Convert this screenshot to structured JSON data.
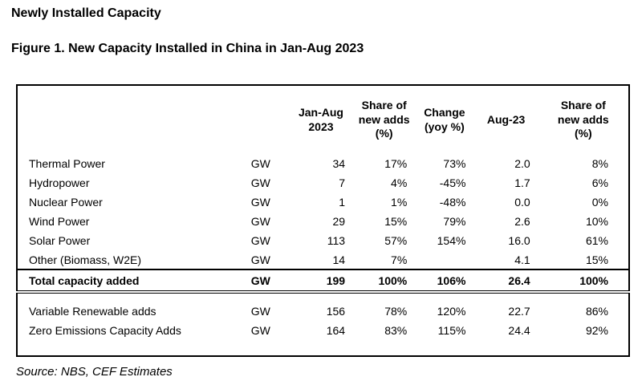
{
  "page": {
    "title": "Newly Installed Capacity",
    "figure_title": "Figure 1. New Capacity Installed in China in Jan-Aug 2023",
    "source_note": "Source: NBS, CEF Estimates"
  },
  "table": {
    "headers": {
      "label": "",
      "unit": "",
      "jan_aug": "Jan-Aug\n2023",
      "share_new_adds_1": "Share of\nnew adds\n(%)",
      "change_yoy": "Change\n(yoy %)",
      "aug_23": "Aug-23",
      "share_new_adds_2": "Share of\nnew adds\n(%)"
    },
    "rows": [
      {
        "label": "Thermal Power",
        "unit": "GW",
        "values": [
          "34",
          "17%",
          "73%",
          "2.0",
          "8%"
        ]
      },
      {
        "label": "Hydropower",
        "unit": "GW",
        "values": [
          "7",
          "4%",
          "-45%",
          "1.7",
          "6%"
        ]
      },
      {
        "label": "Nuclear Power",
        "unit": "GW",
        "values": [
          "1",
          "1%",
          "-48%",
          "0.0",
          "0%"
        ]
      },
      {
        "label": "Wind Power",
        "unit": "GW",
        "values": [
          "29",
          "15%",
          "79%",
          "2.6",
          "10%"
        ]
      },
      {
        "label": "Solar Power",
        "unit": "GW",
        "values": [
          "113",
          "57%",
          "154%",
          "16.0",
          "61%"
        ]
      },
      {
        "label": "Other (Biomass, W2E)",
        "unit": "GW",
        "values": [
          "14",
          "7%",
          "",
          "4.1",
          "15%"
        ]
      }
    ],
    "total_row": {
      "label": "Total capacity added",
      "unit": "GW",
      "values": [
        "199",
        "100%",
        "106%",
        "26.4",
        "100%"
      ]
    },
    "summary_rows": [
      {
        "label": "Variable Renewable adds",
        "unit": "GW",
        "values": [
          "156",
          "78%",
          "120%",
          "22.7",
          "86%"
        ]
      },
      {
        "label": "Zero Emissions Capacity Adds",
        "unit": "GW",
        "values": [
          "164",
          "83%",
          "115%",
          "24.4",
          "92%"
        ]
      }
    ]
  }
}
